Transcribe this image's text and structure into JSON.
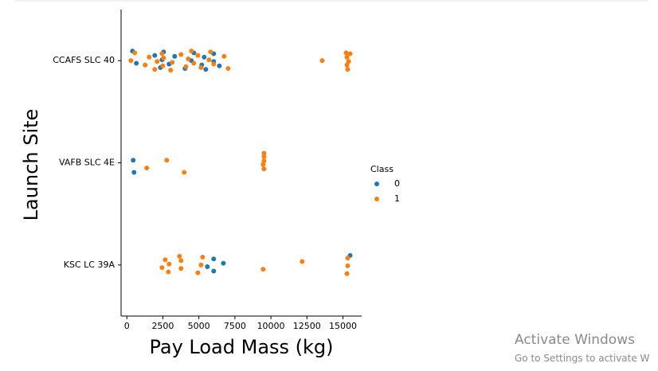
{
  "chart_data": {
    "type": "strip",
    "x_label": "Pay Load Mass (kg)",
    "y_label": "Launch Site",
    "categories": [
      "CCAFS SLC 40",
      "VAFB SLC 4E",
      "KSC LC 39A"
    ],
    "xlim": [
      -400,
      16300
    ],
    "xticks": [
      0,
      2500,
      5000,
      7500,
      10000,
      12500,
      15000
    ],
    "legend_title": "Class",
    "legend_position": "right",
    "series": [
      {
        "name": "0",
        "color": "#1f77b4",
        "x": [
          390,
          660,
          1940,
          2330,
          2440,
          2550,
          2930,
          3320,
          4040,
          4480,
          4650,
          5200,
          5370,
          5480,
          6030,
          6030,
          6420,
          440,
          500,
          5590,
          6030,
          6030,
          6700,
          15500
        ],
        "values": [
          "CCAFS SLC 40",
          "CCAFS SLC 40",
          "CCAFS SLC 40",
          "CCAFS SLC 40",
          "CCAFS SLC 40",
          "CCAFS SLC 40",
          "CCAFS SLC 40",
          "CCAFS SLC 40",
          "CCAFS SLC 40",
          "CCAFS SLC 40",
          "CCAFS SLC 40",
          "CCAFS SLC 40",
          "CCAFS SLC 40",
          "CCAFS SLC 40",
          "CCAFS SLC 40",
          "CCAFS SLC 40",
          "CCAFS SLC 40",
          "VAFB SLC 4E",
          "VAFB SLC 4E",
          "KSC LC 39A",
          "KSC LC 39A",
          "KSC LC 39A",
          "KSC LC 39A",
          "KSC LC 39A"
        ]
      },
      {
        "name": "1",
        "color": "#ff7f0e",
        "x": [
          280,
          550,
          1270,
          1550,
          1940,
          2100,
          2440,
          2490,
          2550,
          3040,
          3150,
          3760,
          4100,
          4260,
          4480,
          4650,
          4930,
          5150,
          5700,
          5810,
          6030,
          6750,
          7030,
          13560,
          15220,
          15280,
          15280,
          15330,
          15390,
          15500,
          1380,
          2770,
          3980,
          9460,
          9520,
          9520,
          9520,
          9520,
          2440,
          2660,
          2880,
          2930,
          3650,
          3760,
          3760,
          4930,
          5150,
          5260,
          9460,
          12170,
          15280,
          15330,
          15330
        ],
        "values": [
          "CCAFS SLC 40",
          "CCAFS SLC 40",
          "CCAFS SLC 40",
          "CCAFS SLC 40",
          "CCAFS SLC 40",
          "CCAFS SLC 40",
          "CCAFS SLC 40",
          "CCAFS SLC 40",
          "CCAFS SLC 40",
          "CCAFS SLC 40",
          "CCAFS SLC 40",
          "CCAFS SLC 40",
          "CCAFS SLC 40",
          "CCAFS SLC 40",
          "CCAFS SLC 40",
          "CCAFS SLC 40",
          "CCAFS SLC 40",
          "CCAFS SLC 40",
          "CCAFS SLC 40",
          "CCAFS SLC 40",
          "CCAFS SLC 40",
          "CCAFS SLC 40",
          "CCAFS SLC 40",
          "CCAFS SLC 40",
          "CCAFS SLC 40",
          "CCAFS SLC 40",
          "CCAFS SLC 40",
          "CCAFS SLC 40",
          "CCAFS SLC 40",
          "CCAFS SLC 40",
          "VAFB SLC 4E",
          "VAFB SLC 4E",
          "VAFB SLC 4E",
          "VAFB SLC 4E",
          "VAFB SLC 4E",
          "VAFB SLC 4E",
          "VAFB SLC 4E",
          "VAFB SLC 4E",
          "KSC LC 39A",
          "KSC LC 39A",
          "KSC LC 39A",
          "KSC LC 39A",
          "KSC LC 39A",
          "KSC LC 39A",
          "KSC LC 39A",
          "KSC LC 39A",
          "KSC LC 39A",
          "KSC LC 39A",
          "KSC LC 39A",
          "KSC LC 39A",
          "KSC LC 39A",
          "KSC LC 39A",
          "KSC LC 39A"
        ]
      }
    ]
  },
  "watermark": {
    "title": "Activate Windows",
    "subtitle": "Go to Settings to activate W"
  }
}
